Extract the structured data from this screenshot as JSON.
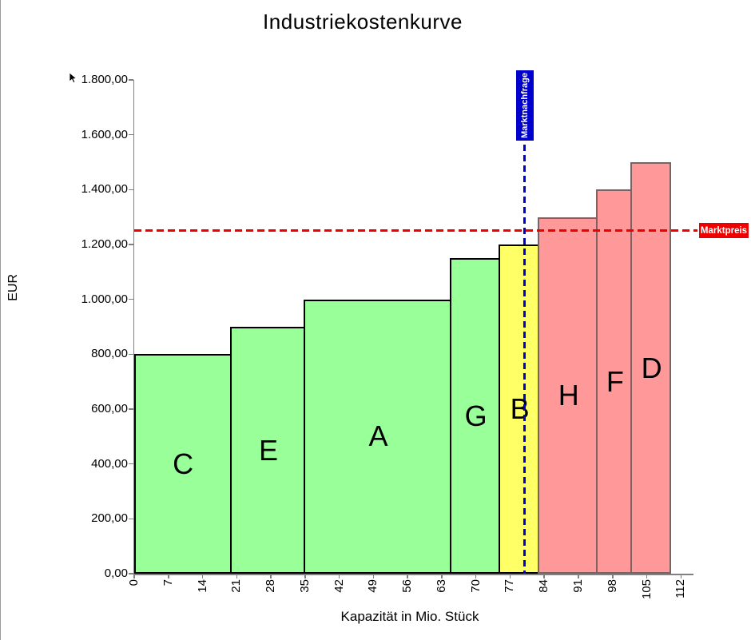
{
  "chart_data": {
    "type": "bar",
    "variant": "variable-width-step-supply-curve",
    "title": "Industriekostenkurve",
    "xlabel": "Kapazität in Mio. Stück",
    "ylabel": "EUR",
    "xlim": [
      0,
      112
    ],
    "ylim": [
      0,
      1800
    ],
    "grid": false,
    "x_ticks": [
      0,
      7,
      14,
      21,
      28,
      35,
      42,
      49,
      56,
      63,
      70,
      77,
      84,
      91,
      98,
      105,
      112
    ],
    "y_ticks": [
      {
        "value": 0,
        "label": "0,00"
      },
      {
        "value": 200,
        "label": "200,00"
      },
      {
        "value": 400,
        "label": "400,00"
      },
      {
        "value": 600,
        "label": "600,00"
      },
      {
        "value": 800,
        "label": "800,00"
      },
      {
        "value": 1000,
        "label": "1.000,00"
      },
      {
        "value": 1200,
        "label": "1.200,00"
      },
      {
        "value": 1400,
        "label": "1.400,00"
      },
      {
        "value": 1600,
        "label": "1.600,00"
      },
      {
        "value": 1800,
        "label": "1.800,00"
      }
    ],
    "segments": [
      {
        "label": "C",
        "from": 0,
        "to": 20,
        "capacity": 20,
        "cost": 800,
        "fill": "#99ff99",
        "border": "#000000"
      },
      {
        "label": "E",
        "from": 20,
        "to": 35,
        "capacity": 15,
        "cost": 900,
        "fill": "#99ff99",
        "border": "#000000"
      },
      {
        "label": "A",
        "from": 35,
        "to": 65,
        "capacity": 30,
        "cost": 1000,
        "fill": "#99ff99",
        "border": "#000000"
      },
      {
        "label": "G",
        "from": 65,
        "to": 75,
        "capacity": 10,
        "cost": 1150,
        "fill": "#99ff99",
        "border": "#000000"
      },
      {
        "label": "B",
        "from": 75,
        "to": 83,
        "capacity": 8,
        "cost": 1200,
        "fill": "#ffff66",
        "border": "#000000"
      },
      {
        "label": "H",
        "from": 83,
        "to": 95,
        "capacity": 12,
        "cost": 1300,
        "fill": "#ff9999",
        "border": "#806060"
      },
      {
        "label": "F",
        "from": 95,
        "to": 102,
        "capacity": 7,
        "cost": 1400,
        "fill": "#ff9999",
        "border": "#806060"
      },
      {
        "label": "D",
        "from": 102,
        "to": 110,
        "capacity": 8,
        "cost": 1500,
        "fill": "#ff9999",
        "border": "#806060"
      }
    ],
    "demand_line": {
      "x": 80,
      "label": "Marktnachfrage",
      "color": "#0000cc",
      "style": "dashed"
    },
    "price_line": {
      "y": 1250,
      "label": "Marktpreis",
      "color": "#ee0000",
      "style": "dashed"
    },
    "legend": "none",
    "colors": {
      "below_price": "#99ff99",
      "marginal_supplier": "#ffff66",
      "above_price": "#ff9999"
    }
  }
}
